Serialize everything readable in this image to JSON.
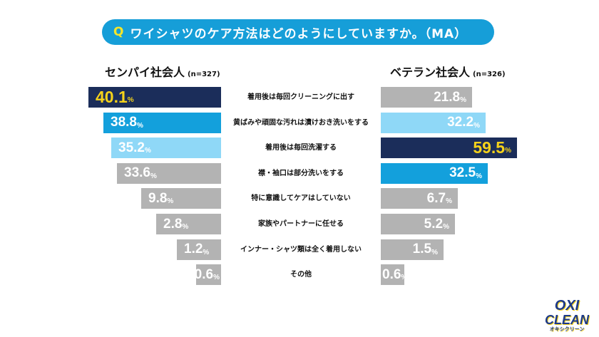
{
  "question": {
    "prefix": "Q",
    "text": "ワイシャツのケア方法はどのようにしていますか。（MA）"
  },
  "chart_data": {
    "type": "bar",
    "categories": [
      "着用後は毎回クリーニングに出す",
      "黄ばみや頑固な汚れは漬けおき洗いをする",
      "着用後は毎回洗濯する",
      "襟・袖口は部分洗いをする",
      "特に意識してケアはしていない",
      "家族やパートナーに任せる",
      "インナー・シャツ類は全く着用しない",
      "その他"
    ],
    "series": [
      {
        "name": "センパイ社会人",
        "n": "(n=327)",
        "values": [
          40.1,
          38.8,
          35.2,
          33.6,
          9.8,
          2.8,
          1.2,
          0.6
        ]
      },
      {
        "name": "ベテラン社会人",
        "n": "(n=326)",
        "values": [
          21.8,
          32.2,
          59.5,
          32.5,
          6.7,
          5.2,
          1.5,
          0.6
        ]
      }
    ],
    "unit": "%",
    "colors": {
      "rank1": "#1b2d5a",
      "rank2": "#13a0dc",
      "rank3": "#8fd8f7",
      "other": "#b3b3b3",
      "highlight_text": "#f5d21a",
      "accent": "#169ed8"
    }
  },
  "logo": {
    "line1": "OXI",
    "line2": "CLEAN",
    "line3": "オキシクリーン"
  }
}
